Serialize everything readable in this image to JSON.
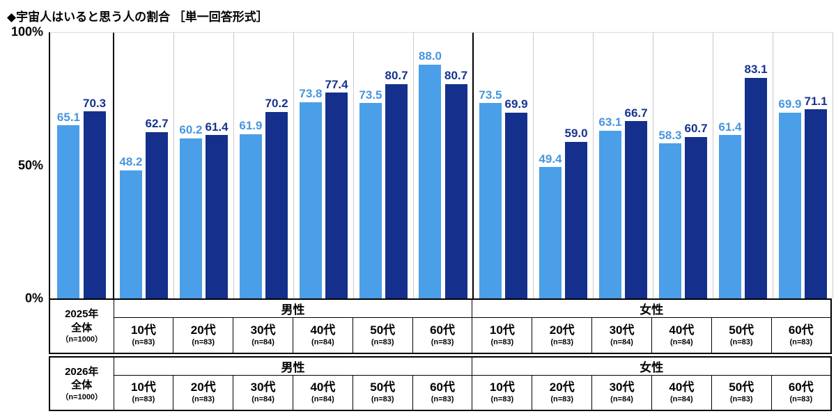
{
  "title": "◆宇宙人はいると思う人の割合 ［単一回答形式］",
  "chart_data": {
    "type": "bar",
    "title": "宇宙人はいると思う人の割合",
    "ylabel": "",
    "ylim": [
      0,
      100
    ],
    "grid": false,
    "legend_position": "bottom-table",
    "yticks": [
      {
        "label": "100%",
        "value": 100
      },
      {
        "label": "50%",
        "value": 50
      },
      {
        "label": "0%",
        "value": 0
      }
    ],
    "categories": [
      "全体",
      "男性 10代",
      "男性 20代",
      "男性 30代",
      "男性 40代",
      "男性 50代",
      "男性 60代",
      "女性 10代",
      "女性 20代",
      "女性 30代",
      "女性 40代",
      "女性 50代",
      "女性 60代"
    ],
    "series": [
      {
        "name": "2025年",
        "color": "#4B9EE8",
        "label_color": "#4696DF",
        "values": [
          65.1,
          48.2,
          60.2,
          61.9,
          73.8,
          73.5,
          88.0,
          73.5,
          49.4,
          63.1,
          58.3,
          61.4,
          69.9
        ]
      },
      {
        "name": "2026年",
        "color": "#14308C",
        "label_color": "#16338F",
        "values": [
          70.3,
          62.7,
          61.4,
          70.2,
          77.4,
          80.7,
          80.7,
          69.9,
          59.0,
          66.7,
          60.7,
          83.1,
          71.1
        ]
      }
    ],
    "section_dividers_after": [
      0,
      6
    ]
  },
  "table": {
    "row_groups": [
      {
        "year": "2025年",
        "total": "全体",
        "total_n": "（n=1000）",
        "sections": [
          {
            "label": "男性",
            "cols": [
              {
                "age": "10代",
                "n": "(n=83)"
              },
              {
                "age": "20代",
                "n": "(n=83)"
              },
              {
                "age": "30代",
                "n": "(n=84)"
              },
              {
                "age": "40代",
                "n": "(n=84)"
              },
              {
                "age": "50代",
                "n": "(n=83)"
              },
              {
                "age": "60代",
                "n": "(n=83)"
              }
            ]
          },
          {
            "label": "女性",
            "cols": [
              {
                "age": "10代",
                "n": "(n=83)"
              },
              {
                "age": "20代",
                "n": "(n=83)"
              },
              {
                "age": "30代",
                "n": "(n=84)"
              },
              {
                "age": "40代",
                "n": "(n=84)"
              },
              {
                "age": "50代",
                "n": "(n=83)"
              },
              {
                "age": "60代",
                "n": "(n=83)"
              }
            ]
          }
        ]
      },
      {
        "year": "2026年",
        "total": "全体",
        "total_n": "（n=1000）",
        "sections": [
          {
            "label": "男性",
            "cols": [
              {
                "age": "10代",
                "n": "(n=83)"
              },
              {
                "age": "20代",
                "n": "(n=83)"
              },
              {
                "age": "30代",
                "n": "(n=84)"
              },
              {
                "age": "40代",
                "n": "(n=84)"
              },
              {
                "age": "50代",
                "n": "(n=83)"
              },
              {
                "age": "60代",
                "n": "(n=83)"
              }
            ]
          },
          {
            "label": "女性",
            "cols": [
              {
                "age": "10代",
                "n": "(n=83)"
              },
              {
                "age": "20代",
                "n": "(n=83)"
              },
              {
                "age": "30代",
                "n": "(n=84)"
              },
              {
                "age": "40代",
                "n": "(n=84)"
              },
              {
                "age": "50代",
                "n": "(n=83)"
              },
              {
                "age": "60代",
                "n": "(n=83)"
              }
            ]
          }
        ]
      }
    ]
  }
}
